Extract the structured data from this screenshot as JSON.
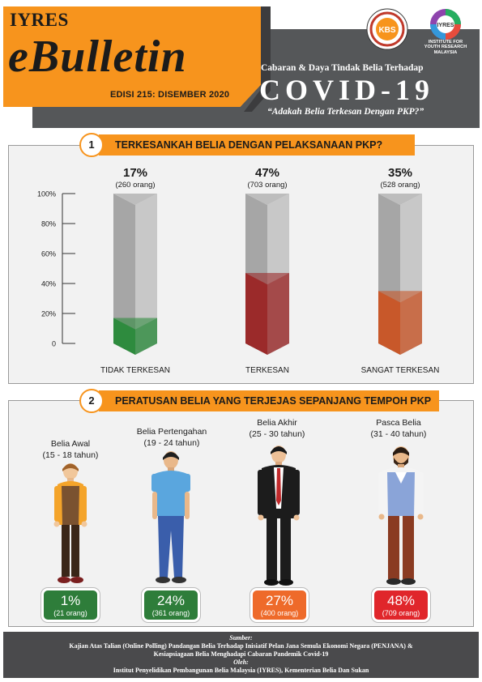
{
  "header": {
    "brand": "IYRES",
    "title": "eBulletin",
    "edition": "EDISI 215: DISEMBER 2020",
    "subtitle": "Cabaran & Daya Tindak Belia Terhadap",
    "headline": "COVID-19",
    "question": "“Adakah Belia Terkesan Dengan PKP?”",
    "logo_kbs_text": "KBS",
    "logo_iyres_text": "IYRES",
    "logo_iyres_caption_1": "INSTITUTE FOR",
    "logo_iyres_caption_2": "YOUTH RESEARCH",
    "logo_iyres_caption_3": "MALAYSIA"
  },
  "section1": {
    "number": "1",
    "title": "TERKESANKAH BELIA DENGAN PELAKSANAAN PKP?"
  },
  "chart_data": {
    "type": "bar",
    "title": "TERKESANKAH BELIA DENGAN PELAKSANAAN PKP?",
    "categories": [
      "TIDAK TERKESAN",
      "TERKESAN",
      "SANGAT TERKESAN"
    ],
    "values": [
      17,
      47,
      35
    ],
    "value_labels": [
      "17%",
      "47%",
      "35%"
    ],
    "count_labels": [
      "(260 orang)",
      "(703 orang)",
      "(528 orang)"
    ],
    "colors": [
      "#2e8b3e",
      "#9b2a2a",
      "#c8582a"
    ],
    "ylim": [
      0,
      100
    ],
    "yticks": [
      0,
      20,
      40,
      60,
      80,
      100
    ],
    "ytick_labels": [
      "0",
      "20%",
      "40%",
      "60%",
      "80%",
      "100%"
    ],
    "grid": false,
    "xlabel": "",
    "ylabel": ""
  },
  "section2": {
    "number": "2",
    "title": "PERATUSAN BELIA YANG TERJEJAS SEPANJANG TEMPOH PKP",
    "groups": [
      {
        "name": "Belia Awal",
        "range": "(15 - 18 tahun)",
        "percent": "1%",
        "count": "(21 orang)",
        "color": "#2e7d3a"
      },
      {
        "name": "Belia Pertengahan",
        "range": "(19 - 24 tahun)",
        "percent": "24%",
        "count": "(361 orang)",
        "color": "#2e7d3a"
      },
      {
        "name": "Belia Akhir",
        "range": "(25 - 30 tahun)",
        "percent": "27%",
        "count": "(400 orang)",
        "color": "#ee6a2a"
      },
      {
        "name": "Pasca Belia",
        "range": "(31 - 40 tahun)",
        "percent": "48%",
        "count": "(709 orang)",
        "color": "#e0262b"
      }
    ]
  },
  "footer": {
    "source_label": "Sumber:",
    "source_line1": "Kajian Atas Talian (Online Polling) Pandangan Belia Terhadap Inisiatif Pelan Jana Semula Ekonomi Negara (PENJANA) &",
    "source_line2": "Kesiapsiagaan Belia Menghadapi Cabaran Pandemik Covid-19",
    "by_label": "Oleh:",
    "by_text": "Institut Penyelidikan Pembangunan Belia Malaysia (IYRES), Kementerian Belia Dan Sukan"
  }
}
